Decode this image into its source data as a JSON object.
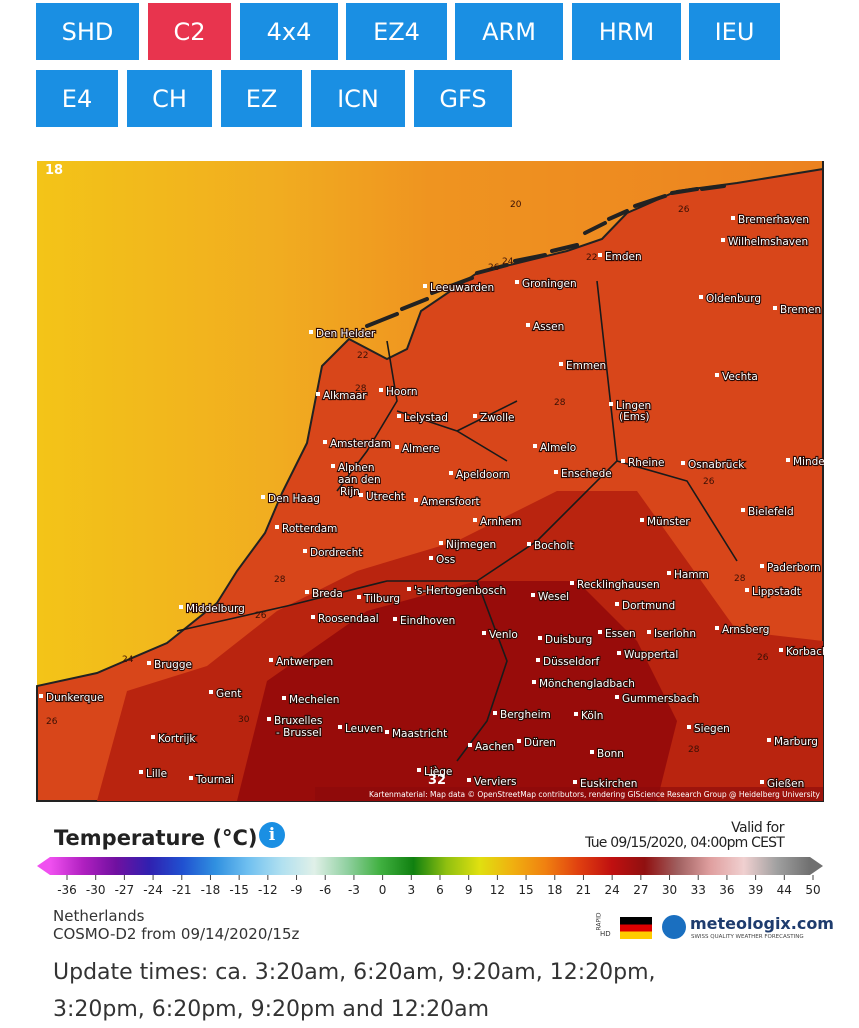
{
  "model_tabs": {
    "row1": [
      "SHD",
      "C2",
      "4x4",
      "EZ4",
      "ARM",
      "HRM",
      "IEU"
    ],
    "row2": [
      "E4",
      "CH",
      "EZ",
      "ICN",
      "GFS"
    ],
    "active": "C2"
  },
  "map": {
    "cities": [
      "Bremerhaven",
      "Wilhelmshaven",
      "Emden",
      "Leeuwarden",
      "Groningen",
      "Oldenburg",
      "Bremen",
      "Den Helder",
      "Assen",
      "Emmen",
      "Vechta",
      "Alkmaar",
      "Hoorn",
      "Lelystad",
      "Zwolle",
      [
        "Lingen",
        "(Ems)"
      ],
      "Amsterdam",
      "Almere",
      "Almelo",
      [
        "Alphen",
        "aan den",
        "Rijn"
      ],
      "Rheine",
      "Osnabrück",
      "Minden",
      "Apeldoorn",
      "Enschede",
      "Den Haag",
      "Utrecht",
      "Amersfoort",
      "Bielefeld",
      "Rotterdam",
      "Arnhem",
      "Münster",
      "Dordrecht",
      "Nijmegen",
      "Bocholt",
      "Paderborn",
      "Oss",
      "Hamm",
      "Recklinghausen",
      "'s-Hertogenbosch",
      "Wesel",
      "Lippstadt",
      "Breda",
      "Tilburg",
      "Dortmund",
      "Middelburg",
      "Roosendaal",
      "Eindhoven",
      "Arnsberg",
      "Venlo",
      "Duisburg",
      "Essen",
      "Iserlohn",
      "Korbach",
      "Brugge",
      "Antwerpen",
      "Wuppertal",
      "Düsseldorf",
      "Mönchengladbach",
      "Dunkerque",
      "Gent",
      "Mechelen",
      "Gummersbach",
      [
        "Bruxelles",
        "- Brussel"
      ],
      "Leuven",
      "Bergheim",
      "Köln",
      "Siegen",
      "Kortrijk",
      "Maastricht",
      "Marburg",
      "Aachen",
      "Düren",
      "Bonn",
      "Lille",
      "Tournai",
      "Liège",
      "Verviers",
      "Euskirchen",
      "Gießen"
    ],
    "contour_labels": [
      18,
      20,
      26,
      24,
      26,
      22,
      22,
      28,
      28,
      26,
      28,
      26,
      24,
      30,
      26,
      28,
      26,
      28,
      32
    ],
    "attribution": "Kartenmaterial: Map data © OpenStreetMap contributors, rendering GIScience Research Group @ Heidelberg University"
  },
  "legend": {
    "title": "Temperature (°C)",
    "info_icon": "i",
    "valid_label": "Valid for",
    "valid_time": "Tue 09/15/2020, 04:00pm CEST",
    "scale_ticks": [
      -36,
      -30,
      -27,
      -24,
      -21,
      -18,
      -15,
      -12,
      -9,
      -6,
      -3,
      0,
      3,
      6,
      9,
      12,
      15,
      18,
      21,
      24,
      27,
      30,
      33,
      36,
      39,
      44,
      50
    ],
    "scale_colors": [
      "#f050f0",
      "#b020c0",
      "#7010a0",
      "#3020b0",
      "#2050d0",
      "#3090e0",
      "#70c0f0",
      "#b0e0f0",
      "#e0f0e8",
      "#90d0a0",
      "#40b040",
      "#108010",
      "#90c010",
      "#e0e010",
      "#f0b010",
      "#f08010",
      "#e04010",
      "#c01010",
      "#901010",
      "#a06060",
      "#e0a0a0",
      "#f0d0d0",
      "#a0a0a0",
      "#707070"
    ]
  },
  "footer": {
    "region": "Netherlands",
    "model_run": "COSMO-D2 from 09/14/2020/15z",
    "badge": [
      "RAPID",
      "HD"
    ],
    "brand": "meteologix.com",
    "brand_tagline": "SWISS QUALITY WEATHER FORECASTING"
  },
  "update_times": "Update times: ca. 3:20am, 6:20am, 9:20am, 12:20pm, 3:20pm, 6:20pm, 9:20pm and 12:20am"
}
